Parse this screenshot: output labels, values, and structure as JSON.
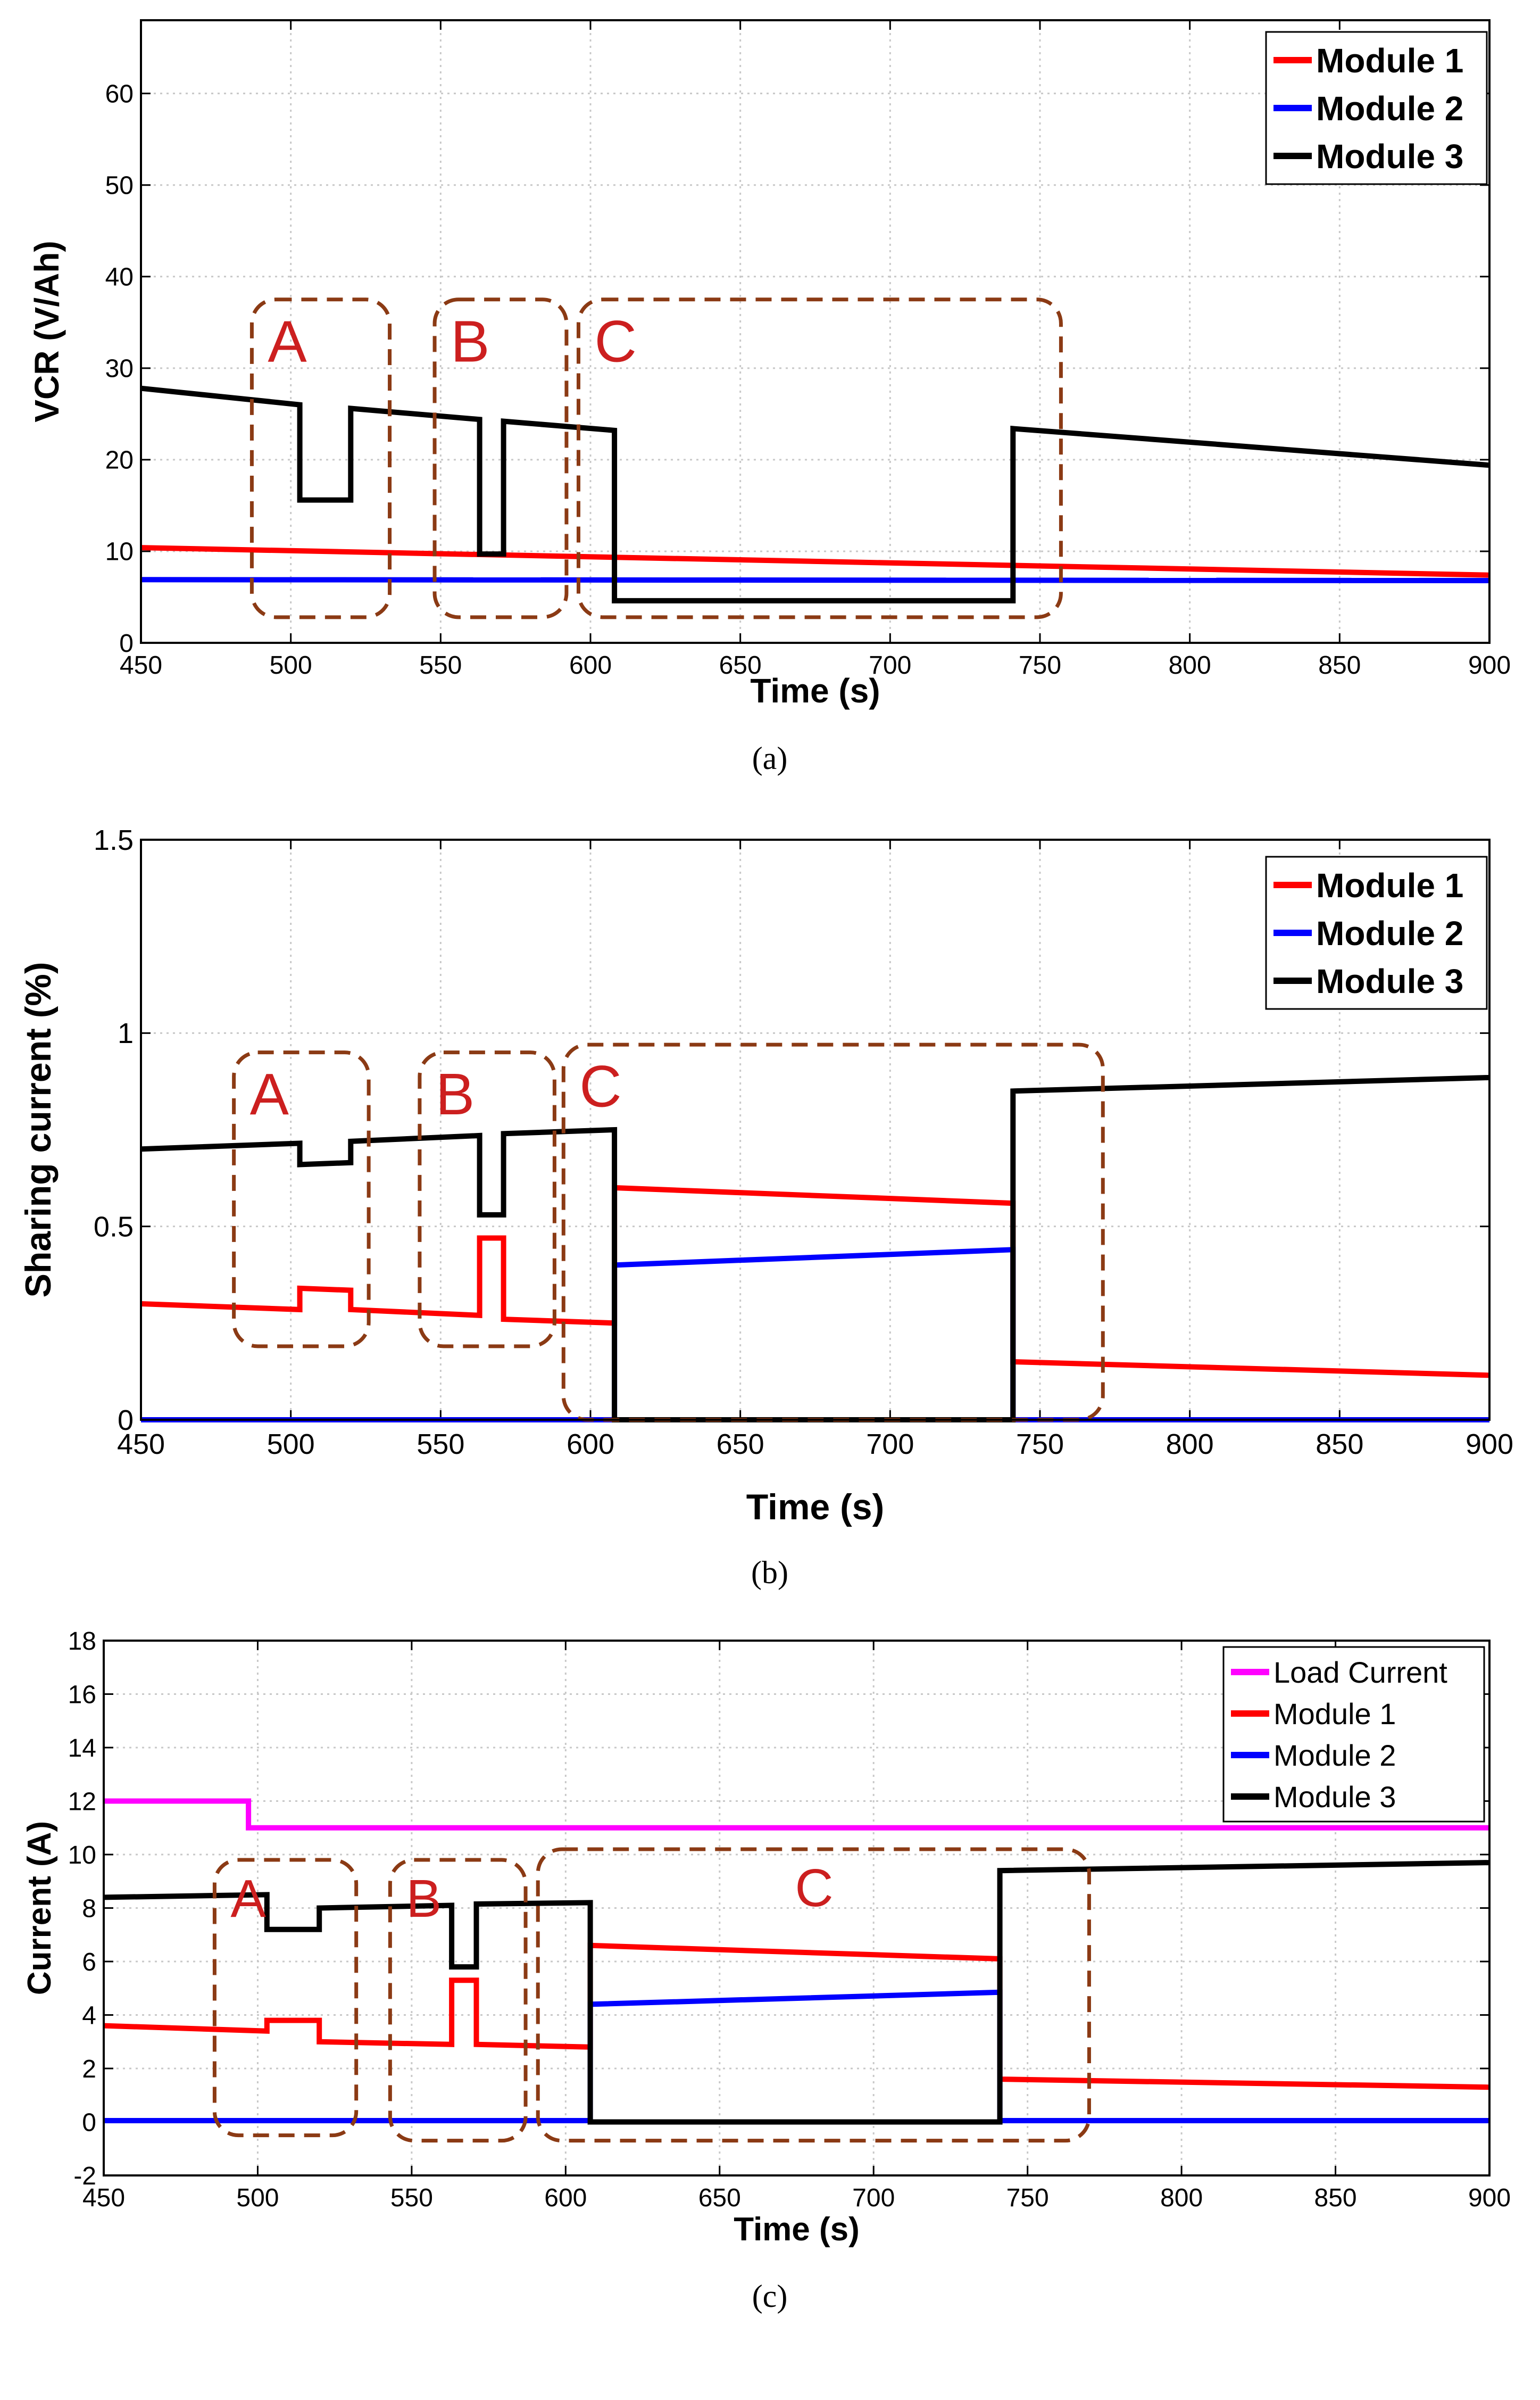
{
  "chart_data": [
    {
      "type": "line",
      "caption": "(a)",
      "title": "",
      "xlabel": "Time (s)",
      "ylabel": "VCR (V/Ah)",
      "xlim": [
        450,
        900
      ],
      "ylim": [
        0,
        68
      ],
      "xticks": [
        450,
        500,
        550,
        600,
        650,
        700,
        750,
        800,
        850,
        900
      ],
      "yticks": [
        0,
        10,
        20,
        30,
        40,
        50,
        60
      ],
      "grid": true,
      "legend_position": "top-right",
      "series": [
        {
          "name": "Module 1",
          "color": "#ff0000",
          "points": [
            [
              450,
              10.4
            ],
            [
              900,
              7.4
            ]
          ]
        },
        {
          "name": "Module 2",
          "color": "#0000ff",
          "points": [
            [
              450,
              6.9
            ],
            [
              900,
              6.8
            ]
          ]
        },
        {
          "name": "Module 3",
          "color": "#000000",
          "points": [
            [
              450,
              27.8
            ],
            [
              503,
              26.0
            ],
            [
              503,
              15.6
            ],
            [
              520,
              15.6
            ],
            [
              520,
              25.6
            ],
            [
              563,
              24.4
            ],
            [
              563,
              9.7
            ],
            [
              571,
              9.7
            ],
            [
              571,
              24.2
            ],
            [
              608,
              23.2
            ],
            [
              608,
              4.6
            ],
            [
              741,
              4.6
            ],
            [
              741,
              23.4
            ],
            [
              900,
              19.4
            ]
          ]
        }
      ],
      "regions": [
        {
          "label": "A",
          "x": [
            487,
            533
          ],
          "y": [
            2.8,
            37.5
          ]
        },
        {
          "label": "B",
          "x": [
            548,
            592
          ],
          "y": [
            2.8,
            37.5
          ]
        },
        {
          "label": "C",
          "x": [
            596,
            757
          ],
          "y": [
            2.8,
            37.5
          ]
        }
      ]
    },
    {
      "type": "line",
      "caption": "(b)",
      "title": "",
      "xlabel": "Time (s)",
      "ylabel": "Sharing current (%)",
      "xlim": [
        450,
        900
      ],
      "ylim": [
        0,
        1.5
      ],
      "xticks": [
        450,
        500,
        550,
        600,
        650,
        700,
        750,
        800,
        850,
        900
      ],
      "yticks": [
        0,
        0.5,
        1,
        1.5
      ],
      "ytick_labels": [
        "0",
        "0.5",
        "1",
        "1.5"
      ],
      "grid": true,
      "legend_position": "top-right",
      "series": [
        {
          "name": "Module 1",
          "color": "#ff0000",
          "points": [
            [
              450,
              0.3
            ],
            [
              503,
              0.285
            ],
            [
              503,
              0.34
            ],
            [
              520,
              0.335
            ],
            [
              520,
              0.285
            ],
            [
              563,
              0.27
            ],
            [
              563,
              0.47
            ],
            [
              571,
              0.47
            ],
            [
              571,
              0.26
            ],
            [
              608,
              0.25
            ],
            [
              608,
              0.6
            ],
            [
              741,
              0.56
            ],
            [
              741,
              0.15
            ],
            [
              900,
              0.115
            ]
          ]
        },
        {
          "name": "Module 2",
          "color": "#0000ff",
          "points": [
            [
              450,
              0.0
            ],
            [
              608,
              0.0
            ],
            [
              608,
              0.4
            ],
            [
              741,
              0.44
            ],
            [
              741,
              0.0
            ],
            [
              900,
              0.0
            ]
          ]
        },
        {
          "name": "Module 3",
          "color": "#000000",
          "points": [
            [
              450,
              0.7
            ],
            [
              503,
              0.715
            ],
            [
              503,
              0.66
            ],
            [
              520,
              0.665
            ],
            [
              520,
              0.72
            ],
            [
              563,
              0.735
            ],
            [
              563,
              0.53
            ],
            [
              571,
              0.53
            ],
            [
              571,
              0.74
            ],
            [
              608,
              0.75
            ],
            [
              608,
              0.0
            ],
            [
              741,
              0.0
            ],
            [
              741,
              0.85
            ],
            [
              900,
              0.885
            ]
          ]
        }
      ],
      "regions": [
        {
          "label": "A",
          "x": [
            481,
            526
          ],
          "y": [
            0.19,
            0.95
          ]
        },
        {
          "label": "B",
          "x": [
            543,
            588
          ],
          "y": [
            0.19,
            0.95
          ]
        },
        {
          "label": "C",
          "x": [
            591,
            771
          ],
          "y": [
            0.0,
            0.97
          ]
        }
      ]
    },
    {
      "type": "line",
      "caption": "(c)",
      "title": "",
      "xlabel": "Time (s)",
      "ylabel": "Current (A)",
      "xlim": [
        450,
        900
      ],
      "ylim": [
        -2,
        18
      ],
      "xticks": [
        450,
        500,
        550,
        600,
        650,
        700,
        750,
        800,
        850,
        900
      ],
      "yticks": [
        -2,
        0,
        2,
        4,
        6,
        8,
        10,
        12,
        14,
        16,
        18
      ],
      "grid": true,
      "legend_position": "top-right",
      "series": [
        {
          "name": "Load Current",
          "color": "#ff00ff",
          "points": [
            [
              450,
              12.0
            ],
            [
              497,
              12.0
            ],
            [
              497,
              11.0
            ],
            [
              900,
              11.0
            ]
          ]
        },
        {
          "name": "Module 1",
          "color": "#ff0000",
          "points": [
            [
              450,
              3.6
            ],
            [
              503,
              3.4
            ],
            [
              503,
              3.8
            ],
            [
              520,
              3.8
            ],
            [
              520,
              3.0
            ],
            [
              563,
              2.9
            ],
            [
              563,
              5.3
            ],
            [
              571,
              5.3
            ],
            [
              571,
              2.9
            ],
            [
              608,
              2.8
            ],
            [
              608,
              6.6
            ],
            [
              741,
              6.1
            ],
            [
              741,
              1.6
            ],
            [
              900,
              1.3
            ]
          ]
        },
        {
          "name": "Module 2",
          "color": "#0000ff",
          "points": [
            [
              450,
              0.05
            ],
            [
              608,
              0.05
            ],
            [
              608,
              4.4
            ],
            [
              741,
              4.85
            ],
            [
              741,
              0.05
            ],
            [
              900,
              0.05
            ]
          ]
        },
        {
          "name": "Module 3",
          "color": "#000000",
          "points": [
            [
              450,
              8.4
            ],
            [
              503,
              8.5
            ],
            [
              503,
              7.2
            ],
            [
              520,
              7.2
            ],
            [
              520,
              8.0
            ],
            [
              563,
              8.1
            ],
            [
              563,
              5.8
            ],
            [
              571,
              5.8
            ],
            [
              571,
              8.15
            ],
            [
              608,
              8.2
            ],
            [
              608,
              0.0
            ],
            [
              741,
              0.0
            ],
            [
              741,
              9.4
            ],
            [
              900,
              9.7
            ]
          ]
        }
      ],
      "regions": [
        {
          "label": "A",
          "x": [
            486,
            532
          ],
          "y": [
            -0.5,
            9.8
          ]
        },
        {
          "label": "B",
          "x": [
            543,
            587
          ],
          "y": [
            -0.7,
            9.8
          ]
        },
        {
          "label": "C",
          "x": [
            591,
            770
          ],
          "y": [
            -0.7,
            10.2
          ]
        }
      ]
    }
  ]
}
